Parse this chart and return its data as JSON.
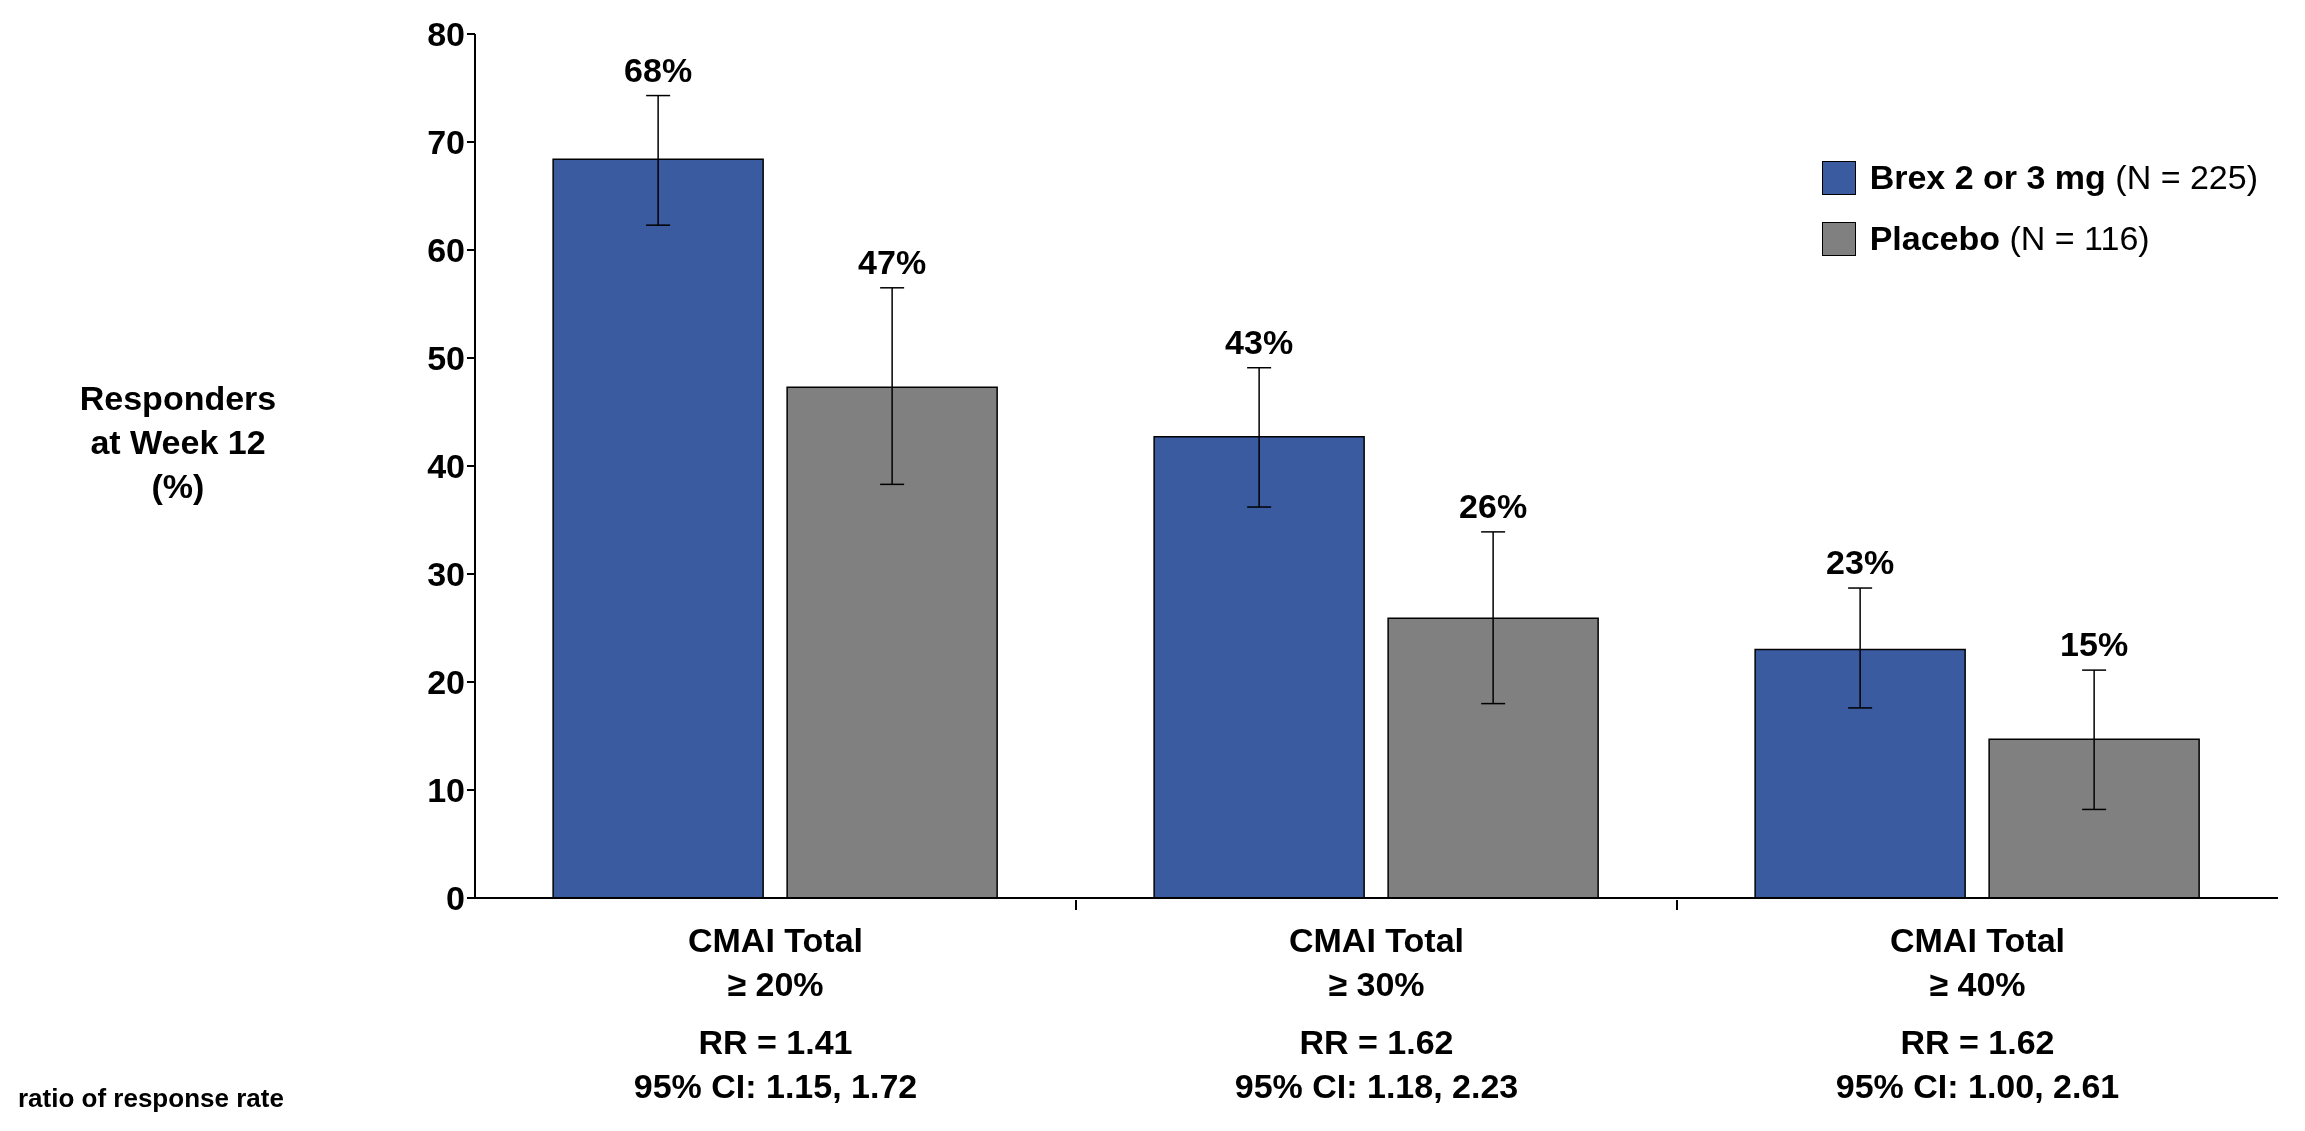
{
  "chart_data": {
    "type": "bar",
    "ylabel": "Responders\nat Week 12\n(%)",
    "categories": [
      "CMAI Total\n≥ 20%\nRR = 1.41\n95% CI: 1.15, 1.72",
      "CMAI Total\n≥ 30%\nRR = 1.62\n95% CI: 1.18, 2.23",
      "CMAI Total\n≥ 40%\nRR = 1.62\n95% CI: 1.00, 2.61"
    ],
    "series": [
      {
        "name": "Brex 2 or 3 mg (N = 225)",
        "color": "#3a5ba0",
        "values": [
          68.4,
          42.7,
          23.0
        ],
        "errors": [
          [
            62.3,
            74.3
          ],
          [
            36.2,
            49.1
          ],
          [
            17.6,
            28.7
          ]
        ],
        "value_labels": [
          "68%",
          "43%",
          "23%"
        ]
      },
      {
        "name": "Placebo (N = 116)",
        "color": "#808080",
        "values": [
          47.3,
          25.9,
          14.7
        ],
        "errors": [
          [
            38.3,
            56.5
          ],
          [
            18.0,
            33.9
          ],
          [
            8.2,
            21.1
          ]
        ],
        "value_labels": [
          "47%",
          "26%",
          "15%"
        ]
      }
    ],
    "ylim": [
      0,
      80
    ],
    "yticks": [
      0,
      10,
      20,
      30,
      40,
      50,
      60,
      70,
      80
    ],
    "grid": false,
    "legend": "top right",
    "annotations": [
      "ratio of response rate"
    ]
  }
}
